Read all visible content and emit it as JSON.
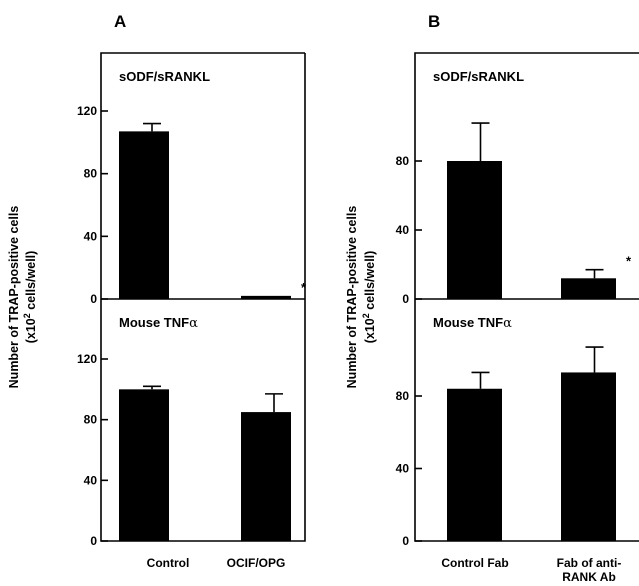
{
  "chart_data": [
    {
      "panel_label": "A",
      "type": "bar",
      "ylabel": "Number of TRAP-positive cells",
      "ylabel_unit": "(x10",
      "ylabel_unit_sup": "2",
      "ylabel_unit_tail": " cells/well)",
      "categories": [
        "Control",
        "OCIF/OPG"
      ],
      "subplots": [
        {
          "title": "sODF/sRANKL",
          "ylim": [
            0,
            140
          ],
          "yticks": [
            0,
            40,
            80,
            120
          ],
          "series": [
            {
              "values": [
                107,
                2
              ],
              "errors": [
                5,
                0
              ]
            }
          ],
          "annotations": [
            {
              "category": "OCIF/OPG",
              "text": "*"
            }
          ]
        },
        {
          "title": "Mouse TNF",
          "title_greek": "α",
          "ylim": [
            0,
            140
          ],
          "yticks": [
            0,
            40,
            80,
            120
          ],
          "series": [
            {
              "values": [
                100,
                85
              ],
              "errors": [
                2,
                12
              ]
            }
          ],
          "annotations": []
        }
      ]
    },
    {
      "panel_label": "B",
      "type": "bar",
      "ylabel": "Number of TRAP-positive cells",
      "ylabel_unit": "(x10",
      "ylabel_unit_sup": "2",
      "ylabel_unit_tail": " cells/well)",
      "categories": [
        "Control Fab",
        "Fab of anti-\nRANK Ab"
      ],
      "subplots": [
        {
          "title": "sODF/sRANKL",
          "ylim": [
            0,
            120
          ],
          "yticks": [
            0,
            40,
            80
          ],
          "series": [
            {
              "values": [
                80,
                12
              ],
              "errors": [
                22,
                5
              ]
            }
          ],
          "annotations": [
            {
              "category": "Fab of anti-\nRANK Ab",
              "text": "*"
            }
          ]
        },
        {
          "title": "Mouse TNF",
          "title_greek": "α",
          "ylim": [
            0,
            125
          ],
          "yticks": [
            0,
            40,
            80
          ],
          "series": [
            {
              "values": [
                84,
                93
              ],
              "errors": [
                9,
                14
              ]
            }
          ],
          "annotations": []
        }
      ]
    }
  ]
}
